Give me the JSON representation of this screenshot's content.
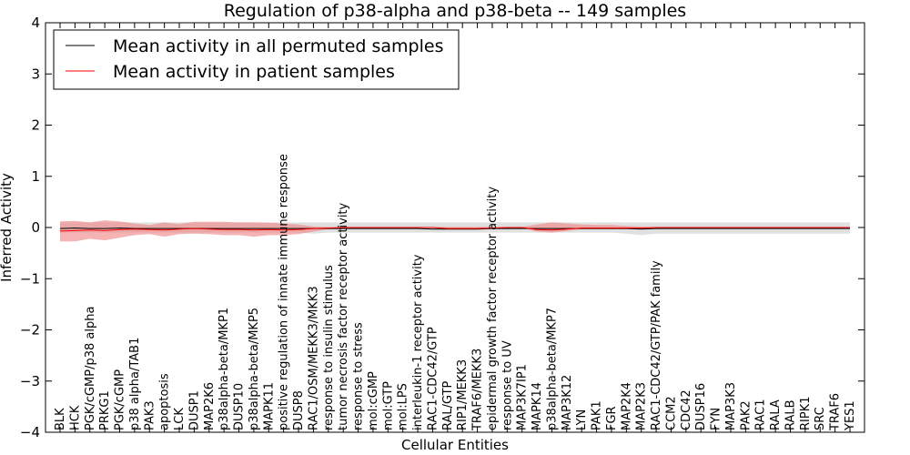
{
  "chart_data": {
    "type": "line",
    "title": "Regulation of p38-alpha and p38-beta -- 149 samples",
    "xlabel": "Cellular Entities",
    "ylabel": "Inferred Activity",
    "ylim": [
      -4,
      4
    ],
    "yticks": [
      "−4",
      "−3",
      "−2",
      "−1",
      "0",
      "1",
      "2",
      "3",
      "4"
    ],
    "grid": false,
    "legend_position": "top-left",
    "categories": [
      "BLK",
      "HCK",
      "PGK/cGMP/p38 alpha",
      "PRKG1",
      "PGK/cGMP",
      "p38 alpha/TAB1",
      "PAK3",
      "apoptosis",
      "LCK",
      "DUSP1",
      "MAP2K6",
      "p38alpha-beta/MKP1",
      "DUSP10",
      "p38alpha-beta/MKP5",
      "MAPK11",
      "positive regulation of innate immune response",
      "DUSP8",
      "RAC1/OSM/MEKK3/MKK3",
      "response to insulin stimulus",
      "tumor necrosis factor receptor activity",
      "response to stress",
      "mol:cGMP",
      "mol:GTP",
      "mol:LPS",
      "interleukin-1 receptor activity",
      "RAC1-CDC42/GTP",
      "RAL/GTP",
      "RIP1/MEKK3",
      "TRAF6/MEKK3",
      "epidermal growth factor receptor activity",
      "response to UV",
      "MAP3K7IP1",
      "MAPK14",
      "p38alpha-beta/MKP7",
      "MAP3K12",
      "LYN",
      "PAK1",
      "FGR",
      "MAP2K4",
      "MAP2K3",
      "RAC1-CDC42/GTP/PAK family",
      "CCM2",
      "CDC42",
      "DUSP16",
      "FYN",
      "MAP3K3",
      "PAK2",
      "RAC1",
      "RALA",
      "RALB",
      "RIPK1",
      "SRC",
      "TRAF6",
      "YES1"
    ],
    "series": [
      {
        "name": "Mean activity in all permuted samples",
        "color": "#000000",
        "band_color": "#bbbbbb",
        "values": [
          -0.02,
          -0.01,
          -0.02,
          -0.02,
          -0.01,
          -0.02,
          -0.02,
          -0.02,
          -0.02,
          -0.02,
          -0.02,
          -0.02,
          -0.02,
          -0.02,
          -0.02,
          -0.02,
          -0.02,
          -0.02,
          -0.02,
          -0.02,
          -0.02,
          -0.02,
          -0.02,
          -0.02,
          -0.02,
          -0.03,
          -0.03,
          -0.03,
          -0.03,
          -0.02,
          -0.02,
          -0.02,
          -0.02,
          -0.02,
          -0.02,
          -0.02,
          -0.02,
          -0.02,
          -0.02,
          -0.03,
          -0.02,
          -0.02,
          -0.02,
          -0.02,
          -0.02,
          -0.02,
          -0.02,
          -0.02,
          -0.02,
          -0.02,
          -0.02,
          -0.02,
          -0.02,
          -0.02
        ],
        "lower": [
          -0.1,
          -0.1,
          -0.1,
          -0.1,
          -0.1,
          -0.1,
          -0.1,
          -0.1,
          -0.1,
          -0.1,
          -0.1,
          -0.1,
          -0.1,
          -0.1,
          -0.1,
          -0.1,
          -0.1,
          -0.12,
          -0.1,
          -0.1,
          -0.1,
          -0.1,
          -0.1,
          -0.1,
          -0.1,
          -0.1,
          -0.1,
          -0.1,
          -0.1,
          -0.1,
          -0.1,
          -0.1,
          -0.1,
          -0.1,
          -0.1,
          -0.1,
          -0.1,
          -0.1,
          -0.12,
          -0.15,
          -0.12,
          -0.12,
          -0.12,
          -0.12,
          -0.12,
          -0.12,
          -0.12,
          -0.12,
          -0.12,
          -0.12,
          -0.12,
          -0.12,
          -0.12,
          -0.12
        ],
        "upper": [
          0.1,
          0.1,
          0.1,
          0.1,
          0.1,
          0.1,
          0.1,
          0.1,
          0.1,
          0.1,
          0.1,
          0.1,
          0.1,
          0.1,
          0.1,
          0.1,
          0.1,
          0.1,
          0.1,
          0.1,
          0.1,
          0.1,
          0.1,
          0.1,
          0.1,
          0.1,
          0.1,
          0.1,
          0.1,
          0.1,
          0.1,
          0.1,
          0.1,
          0.1,
          0.1,
          0.1,
          0.1,
          0.1,
          0.1,
          0.1,
          0.1,
          0.1,
          0.1,
          0.1,
          0.1,
          0.1,
          0.1,
          0.1,
          0.1,
          0.1,
          0.1,
          0.1,
          0.1,
          0.1
        ]
      },
      {
        "name": "Mean activity in patient samples",
        "color": "#ff0000",
        "band_color": "#f08080",
        "values": [
          -0.07,
          -0.06,
          -0.05,
          -0.06,
          -0.04,
          -0.03,
          -0.04,
          -0.05,
          -0.03,
          -0.02,
          -0.03,
          -0.04,
          -0.04,
          -0.05,
          -0.04,
          -0.05,
          -0.04,
          -0.02,
          -0.01,
          0.0,
          0.0,
          0.0,
          0.0,
          0.0,
          0.0,
          0.0,
          -0.02,
          -0.02,
          -0.02,
          -0.01,
          0.0,
          0.0,
          -0.04,
          -0.05,
          -0.03,
          -0.01,
          -0.01,
          -0.01,
          -0.01,
          -0.01,
          0.0,
          0.0,
          0.0,
          0.0,
          0.0,
          0.0,
          0.0,
          0.0,
          0.0,
          0.0,
          0.0,
          0.0,
          0.0,
          0.0
        ],
        "lower": [
          -0.27,
          -0.27,
          -0.22,
          -0.25,
          -0.2,
          -0.15,
          -0.13,
          -0.18,
          -0.13,
          -0.12,
          -0.13,
          -0.15,
          -0.15,
          -0.18,
          -0.15,
          -0.15,
          -0.13,
          -0.08,
          -0.03,
          -0.01,
          -0.01,
          -0.01,
          -0.01,
          -0.01,
          -0.01,
          -0.01,
          -0.03,
          -0.03,
          -0.03,
          -0.02,
          -0.01,
          -0.01,
          -0.08,
          -0.1,
          -0.07,
          -0.03,
          -0.03,
          -0.03,
          -0.03,
          -0.03,
          -0.01,
          -0.01,
          -0.01,
          -0.01,
          -0.01,
          -0.01,
          -0.01,
          -0.01,
          -0.01,
          -0.01,
          -0.01,
          -0.01,
          -0.01,
          -0.01
        ],
        "upper": [
          0.12,
          0.13,
          0.1,
          0.14,
          0.12,
          0.08,
          0.05,
          0.1,
          0.07,
          0.11,
          0.11,
          0.11,
          0.1,
          0.1,
          0.09,
          0.08,
          0.06,
          0.02,
          0.01,
          0.01,
          0.01,
          0.01,
          0.01,
          0.01,
          0.01,
          0.01,
          0.01,
          0.01,
          0.01,
          0.01,
          0.01,
          0.01,
          0.06,
          0.1,
          0.08,
          0.06,
          0.05,
          0.05,
          0.03,
          0.02,
          0.01,
          0.01,
          0.01,
          0.01,
          0.01,
          0.01,
          0.01,
          0.01,
          0.01,
          0.01,
          0.01,
          0.01,
          0.01,
          0.01
        ]
      }
    ]
  }
}
